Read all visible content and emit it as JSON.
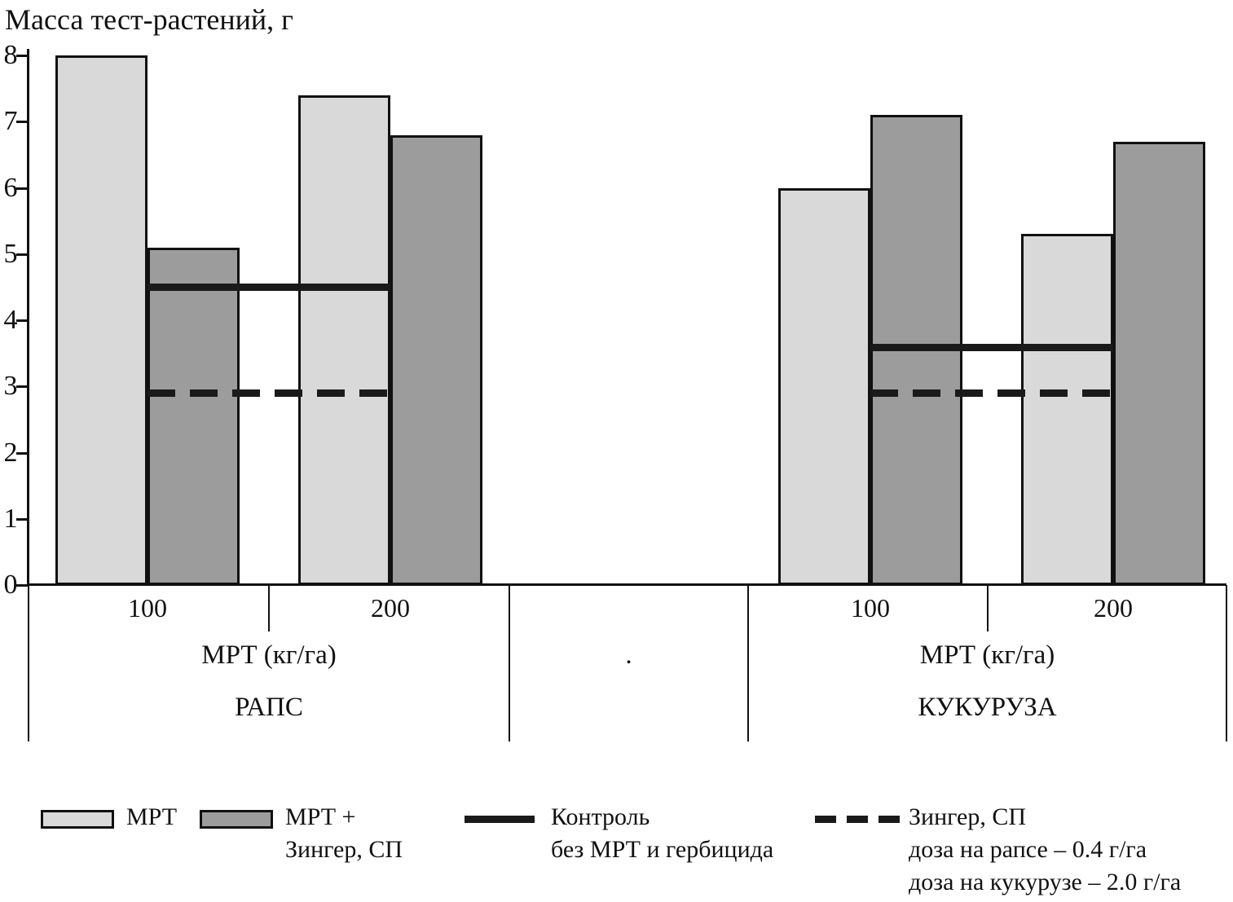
{
  "colors": {
    "light_bar": "#d9d9d9",
    "dark_bar": "#9c9c9c",
    "line": "#1a1a1a",
    "axis": "#111111"
  },
  "chart_data": {
    "type": "bar",
    "ylabel": "Масса тест-растений, г",
    "ylim": [
      0,
      8
    ],
    "yticks": [
      "0",
      "1",
      "2",
      "3",
      "4",
      "5",
      "6",
      "7",
      "8"
    ],
    "grid": false,
    "legend_position": "bottom",
    "x_axis_unit_label": "МРТ (кг/га)",
    "separator_dot": ".",
    "groups": [
      {
        "name": "РАПС",
        "axis_label": "МРТ (кг/га)",
        "categories": [
          "100",
          "200"
        ],
        "series": [
          {
            "name": "МРТ",
            "swatch": "light",
            "values": [
              8.0,
              7.4
            ]
          },
          {
            "name": "МРТ + Зингер, СП",
            "swatch": "dark",
            "values": [
              5.1,
              6.8
            ]
          }
        ],
        "control_line_value": 4.5,
        "zinger_line_value": 2.9
      },
      {
        "name": "КУКУРУЗА",
        "axis_label": "МРТ (кг/га)",
        "categories": [
          "100",
          "200"
        ],
        "series": [
          {
            "name": "МРТ",
            "swatch": "light",
            "values": [
              6.0,
              5.3
            ]
          },
          {
            "name": "МРТ + Зингер, СП",
            "swatch": "dark",
            "values": [
              7.1,
              6.7
            ]
          }
        ],
        "control_line_value": 3.6,
        "zinger_line_value": 2.9
      }
    ],
    "legend_entries": [
      "МРТ",
      "МРТ + Зингер, СП",
      "Контроль без МРТ и гербицида",
      "Зингер, СП доза на рапсе – 0.4 г/га доза на кукурузе – 2.0 г/га"
    ]
  },
  "legend": {
    "mrt": {
      "label": "МРТ"
    },
    "mrt_zinger": {
      "label": "МРТ +\nЗингер, СП"
    },
    "control": {
      "label": "Контроль\nбез МРТ и гербицида"
    },
    "zinger": {
      "label": "Зингер, СП\nдоза на рапсе – 0.4 г/га\nдоза на кукурузе – 2.0 г/га"
    }
  }
}
